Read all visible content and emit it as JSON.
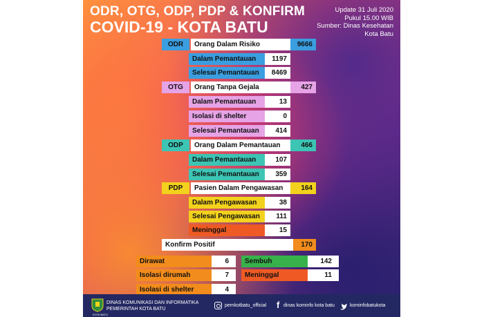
{
  "title_line1": "ODR, OTG, ODP, PDP & KONFIRM",
  "title_line2": "COVID-19 - KOTA BATU",
  "update": {
    "date": "Update 31 Juli 2020",
    "time": "Pukul 15.00 WIB",
    "source": "Sumber: Dinas Kesehatan",
    "source2": "Kota Batu"
  },
  "odr": {
    "tag": "ODR",
    "label": "Orang Dalam Risiko",
    "total": "9666",
    "rows": [
      {
        "label": "Dalam Pemantauan",
        "value": "1197"
      },
      {
        "label": "Selesai Pemantauan",
        "value": "8469"
      }
    ]
  },
  "otg": {
    "tag": "OTG",
    "label": "Orang Tanpa Gejala",
    "total": "427",
    "rows": [
      {
        "label": "Dalam Pemantauan",
        "value": "13"
      },
      {
        "label": "Isolasi di shelter",
        "value": "0"
      },
      {
        "label": "Selesai Pemantauan",
        "value": "414"
      }
    ]
  },
  "odp": {
    "tag": "ODP",
    "label": "Orang Dalam Pemantauan",
    "total": "466",
    "rows": [
      {
        "label": "Dalam Pemantauan",
        "value": "107"
      },
      {
        "label": "Selesai Pemantauan",
        "value": "359"
      }
    ]
  },
  "pdp": {
    "tag": "PDP",
    "label": "Pasien Dalam Pengawasan",
    "total": "164",
    "rows": [
      {
        "label": "Dalam Pengawasan",
        "value": "38"
      },
      {
        "label": "Selesai Pengawasan",
        "value": "111"
      },
      {
        "label": "Meninggal",
        "value": "15"
      }
    ]
  },
  "konfirm": {
    "label": "Konfirm Positif",
    "total": "170",
    "left": [
      {
        "label": "Dirawat",
        "value": "6"
      },
      {
        "label": "Isolasi dirumah",
        "value": "7"
      },
      {
        "label": "Isolasi di shelter",
        "value": "4"
      }
    ],
    "right": [
      {
        "label": "Sembuh",
        "value": "142"
      },
      {
        "label": "Meninggal",
        "value": "11"
      }
    ]
  },
  "footer": {
    "logo_text": "KOTA BATU",
    "dept_line1": "DINAS KOMUNIKASI DAN INFORMATIKA",
    "dept_line2": "PEMERINTAH KOTA BATU",
    "instagram": "pemkotbatu_official",
    "facebook": "dinas kominfo kota batu",
    "twitter": "kominfobatukota"
  },
  "colors": {
    "odr": "#3a9ee0",
    "otg": "#e6a3e6",
    "odp": "#3cc4b4",
    "pdp": "#f2d21c",
    "meninggal": "#ef5a24",
    "konfirm": "#f28c1c",
    "sembuh": "#37b14a",
    "footer": "#232862"
  }
}
